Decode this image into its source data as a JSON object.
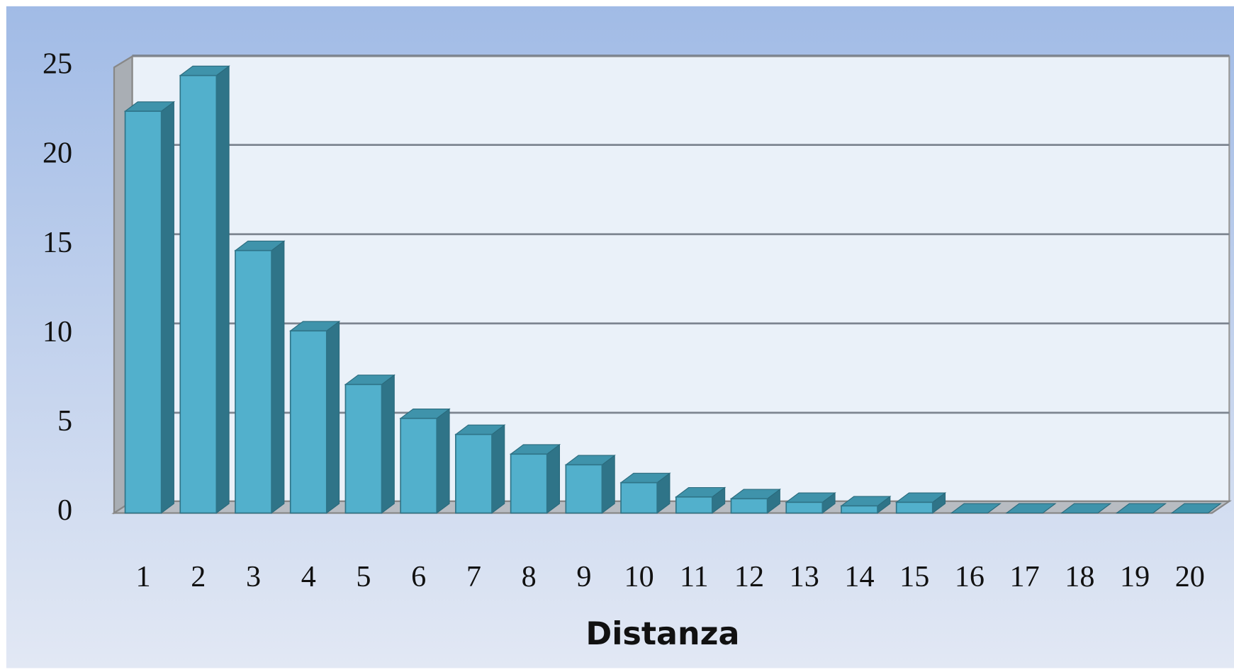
{
  "chart_data": {
    "type": "bar",
    "x_label": "Distanza",
    "categories": [
      "1",
      "2",
      "3",
      "4",
      "5",
      "6",
      "7",
      "8",
      "9",
      "10",
      "11",
      "12",
      "13",
      "14",
      "15",
      "16",
      "17",
      "18",
      "19",
      "20"
    ],
    "values": [
      22.5,
      24.5,
      14.7,
      10.2,
      7.2,
      5.3,
      4.4,
      3.3,
      2.7,
      1.7,
      0.9,
      0.8,
      0.6,
      0.4,
      0.6,
      0,
      0,
      0,
      0,
      0
    ],
    "color": "#52b0cc",
    "ylim": [
      0,
      25
    ],
    "yticks": [
      0,
      5,
      10,
      15,
      20,
      25
    ],
    "grid": true
  }
}
